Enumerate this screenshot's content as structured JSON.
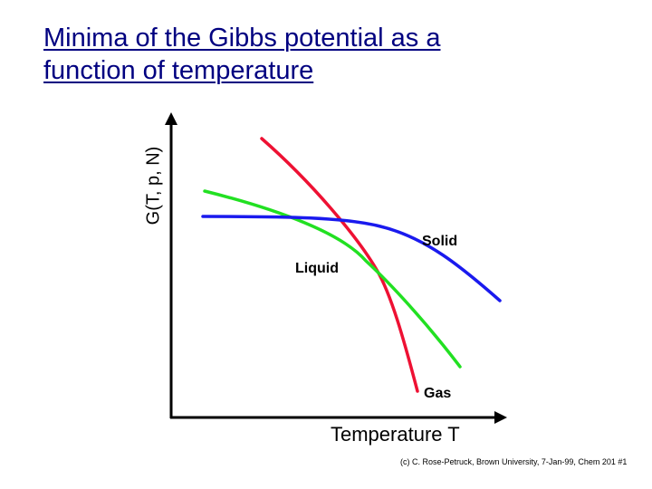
{
  "title": {
    "line1": "Minima of the Gibbs potential as a",
    "line2": "function of temperature",
    "color": "#000080"
  },
  "axes": {
    "y_label": "G(T, p, N)",
    "x_label": "Temperature T"
  },
  "curves": {
    "solid": {
      "label": "Solid",
      "color": "#1a1aee"
    },
    "liquid": {
      "label": "Liquid",
      "color": "#22e022"
    },
    "gas": {
      "label": "Gas",
      "color": "#ee1133"
    }
  },
  "footer": "(c) C. Rose-Petruck, Brown University, 7-Jan-99, Chem 201 #1"
}
